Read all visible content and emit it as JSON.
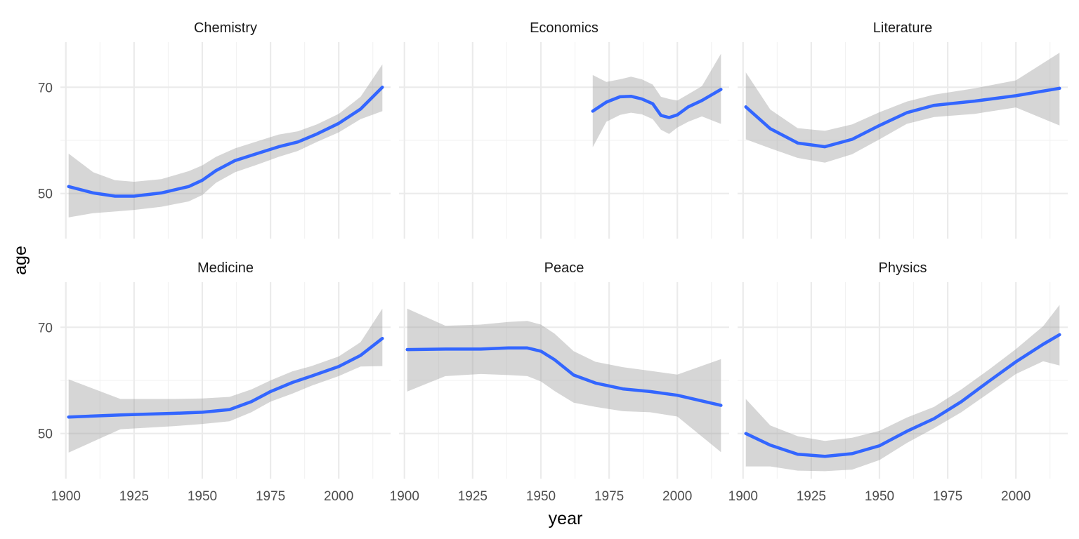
{
  "chart_data": {
    "type": "line",
    "xlabel": "year",
    "ylabel": "age",
    "xlim": [
      1898,
      2019
    ],
    "ylim": [
      41.5,
      78.5
    ],
    "x_ticks": [
      1900,
      1925,
      1950,
      1975,
      2000
    ],
    "y_ticks": [
      50,
      70
    ],
    "grid": true,
    "legend": "none",
    "colors": {
      "line": "#3366FF",
      "ribbon": "#999999"
    },
    "panels": [
      {
        "name": "Chemistry",
        "series": [
          {
            "x": [
              1901,
              1910,
              1918,
              1925,
              1935,
              1945,
              1950,
              1955,
              1962,
              1970,
              1978,
              1985,
              1992,
              2000,
              2008,
              2016
            ],
            "y": [
              51.3,
              50.1,
              49.5,
              49.5,
              50.1,
              51.3,
              52.5,
              54.3,
              56.2,
              57.5,
              58.8,
              59.7,
              61.2,
              63.2,
              65.9,
              70.0
            ],
            "lower": [
              45.5,
              46.3,
              46.6,
              46.9,
              47.5,
              48.5,
              49.7,
              52.0,
              54.0,
              55.4,
              56.9,
              58.0,
              59.7,
              61.5,
              64.0,
              65.5
            ],
            "upper": [
              57.5,
              54.0,
              52.5,
              52.2,
              52.7,
              54.2,
              55.3,
              56.9,
              58.5,
              59.8,
              61.1,
              61.7,
              63.0,
              65.0,
              68.2,
              74.3
            ]
          }
        ]
      },
      {
        "name": "Economics",
        "series": [
          {
            "x": [
              1969,
              1974,
              1979,
              1983,
              1987,
              1991,
              1994,
              1997,
              2000,
              2004,
              2009,
              2016
            ],
            "y": [
              65.5,
              67.2,
              68.2,
              68.3,
              67.8,
              66.9,
              64.7,
              64.3,
              64.8,
              66.3,
              67.5,
              69.6
            ],
            "lower": [
              58.7,
              63.5,
              64.8,
              65.2,
              64.9,
              64.0,
              62.0,
              61.2,
              62.4,
              63.5,
              64.5,
              63.1
            ],
            "upper": [
              72.3,
              71.0,
              71.5,
              72.0,
              71.5,
              70.5,
              68.2,
              67.8,
              67.5,
              68.7,
              70.2,
              76.3
            ]
          }
        ]
      },
      {
        "name": "Literature",
        "series": [
          {
            "x": [
              1901,
              1910,
              1920,
              1930,
              1940,
              1950,
              1960,
              1970,
              1985,
              2000,
              2016
            ],
            "y": [
              66.3,
              62.2,
              59.5,
              58.8,
              60.2,
              62.8,
              65.2,
              66.6,
              67.4,
              68.4,
              69.8
            ],
            "lower": [
              60.2,
              58.5,
              56.7,
              55.8,
              57.4,
              60.2,
              63.1,
              64.4,
              65.0,
              66.2,
              62.8
            ],
            "upper": [
              72.8,
              65.8,
              62.3,
              61.8,
              63.0,
              65.3,
              67.3,
              68.6,
              69.8,
              71.3,
              76.5
            ]
          }
        ]
      },
      {
        "name": "Medicine",
        "series": [
          {
            "x": [
              1901,
              1920,
              1940,
              1950,
              1960,
              1968,
              1975,
              1983,
              1990,
              2000,
              2008,
              2016
            ],
            "y": [
              53.1,
              53.5,
              53.8,
              54.0,
              54.5,
              56.0,
              57.9,
              59.6,
              60.8,
              62.6,
              64.7,
              67.9
            ],
            "lower": [
              46.4,
              50.8,
              51.4,
              51.8,
              52.3,
              54.0,
              56.0,
              57.5,
              59.0,
              60.8,
              62.6,
              62.7
            ],
            "upper": [
              60.2,
              56.5,
              56.5,
              56.6,
              56.9,
              58.3,
              60.0,
              61.7,
              62.7,
              64.5,
              67.2,
              73.5
            ]
          }
        ]
      },
      {
        "name": "Peace",
        "series": [
          {
            "x": [
              1901,
              1915,
              1928,
              1938,
              1945,
              1950,
              1955,
              1962,
              1970,
              1980,
              1990,
              2000,
              2016
            ],
            "y": [
              65.8,
              65.9,
              65.9,
              66.1,
              66.1,
              65.5,
              63.9,
              61.0,
              59.5,
              58.4,
              57.9,
              57.2,
              55.3
            ],
            "lower": [
              57.9,
              60.8,
              61.2,
              61.0,
              60.8,
              59.8,
              58.0,
              55.8,
              55.0,
              54.2,
              54.0,
              53.2,
              46.5
            ],
            "upper": [
              73.5,
              70.3,
              70.5,
              71.0,
              71.2,
              70.5,
              68.8,
              65.5,
              63.5,
              62.5,
              61.8,
              61.1,
              64.0
            ]
          }
        ]
      },
      {
        "name": "Physics",
        "series": [
          {
            "x": [
              1901,
              1910,
              1920,
              1930,
              1940,
              1950,
              1960,
              1970,
              1980,
              1990,
              2000,
              2010,
              2016
            ],
            "y": [
              50.0,
              47.8,
              46.1,
              45.7,
              46.2,
              47.7,
              50.4,
              52.8,
              56.0,
              59.8,
              63.5,
              66.8,
              68.6
            ],
            "lower": [
              43.8,
              43.8,
              43.0,
              42.9,
              43.2,
              45.0,
              48.2,
              51.0,
              54.0,
              57.6,
              61.2,
              63.6,
              62.8
            ],
            "upper": [
              56.5,
              51.5,
              49.5,
              48.6,
              49.2,
              50.5,
              53.0,
              55.0,
              58.3,
              62.0,
              65.9,
              70.2,
              74.2
            ]
          }
        ]
      }
    ]
  }
}
